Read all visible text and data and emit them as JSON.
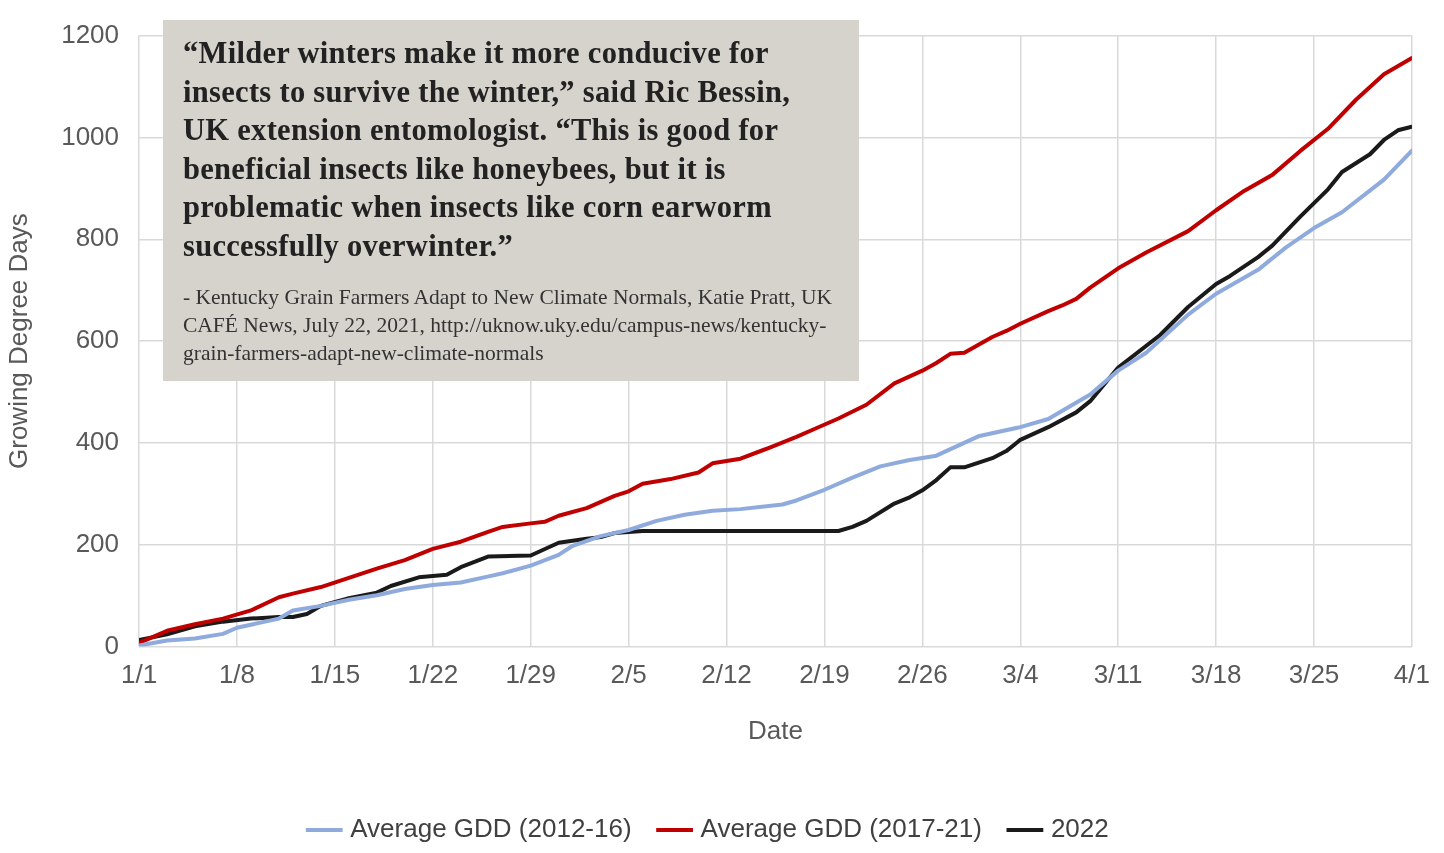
{
  "chart_data": {
    "type": "line",
    "xlabel": "Date",
    "ylabel": "Growing Degree Days",
    "annotations": [
      "“Milder winters make it more conducive for insects to survive the winter,” said Ric Bessin, UK extension entomologist. “This is good for beneficial insects like honeybees, but it is problematic when insects like corn earworm successfully overwinter.”",
      "- Kentucky Grain Farmers Adapt to New Climate Normals, Katie Pratt, UK CAFÉ News, July 22, 2021, http://uknow.uky.edu/campus-news/kentucky-grain-farmers-adapt-new-climate-normals"
    ],
    "xlim": [
      "--01-01",
      "--04-01"
    ],
    "xticks": [
      {
        "value": "--01-01",
        "label": "1/1"
      },
      {
        "value": "--01-08",
        "label": "1/8"
      },
      {
        "value": "--01-15",
        "label": "1/15"
      },
      {
        "value": "--01-22",
        "label": "1/22"
      },
      {
        "value": "--01-29",
        "label": "1/29"
      },
      {
        "value": "--02-05",
        "label": "2/5"
      },
      {
        "value": "--02-12",
        "label": "2/12"
      },
      {
        "value": "--02-19",
        "label": "2/19"
      },
      {
        "value": "--02-26",
        "label": "2/26"
      },
      {
        "value": "--03-04",
        "label": "3/4"
      },
      {
        "value": "--03-11",
        "label": "3/11"
      },
      {
        "value": "--03-18",
        "label": "3/18"
      },
      {
        "value": "--03-25",
        "label": "3/25"
      },
      {
        "value": "--04-01",
        "label": "4/1"
      }
    ],
    "ylim": [
      0,
      1200
    ],
    "yticks": [
      0,
      200,
      400,
      600,
      800,
      1000,
      1200
    ],
    "grid": true,
    "legend": "bottom",
    "marker": "none",
    "line_style": "solid",
    "series": [
      {
        "name": "Average GDD (2012-16)",
        "color": "#8faadc",
        "x": [
          "--01-01",
          "--01-03",
          "--01-05",
          "--01-07",
          "--01-08",
          "--01-11",
          "--01-12",
          "--01-14",
          "--01-16",
          "--01-18",
          "--01-20",
          "--01-22",
          "--01-24",
          "--01-26",
          "--01-27",
          "--01-29",
          "--01-31",
          "--02-01",
          "--02-03",
          "--02-05",
          "--02-07",
          "--02-09",
          "--02-11",
          "--02-13",
          "--02-16",
          "--02-17",
          "--02-19",
          "--02-21",
          "--02-23",
          "--02-25",
          "--02-27",
          "--03-01",
          "--03-04",
          "--03-06",
          "--03-09",
          "--03-11",
          "--03-13",
          "--03-16",
          "--03-18",
          "--03-21",
          "--03-23",
          "--03-25",
          "--03-27",
          "--03-30",
          "--04-01"
        ],
        "values": [
          2,
          12,
          16,
          25,
          37,
          55,
          71,
          80,
          92,
          101,
          113,
          121,
          126,
          138,
          144,
          159,
          180,
          198,
          217,
          229,
          247,
          259,
          267,
          270,
          279,
          287,
          308,
          332,
          354,
          366,
          375,
          413,
          431,
          447,
          495,
          542,
          577,
          652,
          693,
          740,
          784,
          822,
          853,
          917,
          974
        ]
      },
      {
        "name": "Average GDD (2017-21)",
        "color": "#c00000",
        "x": [
          "--01-01",
          "--01-03",
          "--01-05",
          "--01-07",
          "--01-09",
          "--01-11",
          "--01-12",
          "--01-14",
          "--01-16",
          "--01-18",
          "--01-20",
          "--01-22",
          "--01-24",
          "--01-26",
          "--01-27",
          "--01-29",
          "--01-30",
          "--01-31",
          "--02-02",
          "--02-04",
          "--02-05",
          "--02-06",
          "--02-08",
          "--02-10",
          "--02-11",
          "--02-13",
          "--02-15",
          "--02-17",
          "--02-18",
          "--02-20",
          "--02-22",
          "--02-24",
          "--02-26",
          "--02-27",
          "--02-28",
          "--02-29",
          "--03-02",
          "--03-03",
          "--03-04",
          "--03-06",
          "--03-07",
          "--03-08",
          "--03-09",
          "--03-11",
          "--03-13",
          "--03-16",
          "--03-18",
          "--03-20",
          "--03-22",
          "--03-24",
          "--03-26",
          "--03-28",
          "--03-30",
          "--04-01"
        ],
        "values": [
          7,
          31,
          44,
          55,
          71,
          97,
          104,
          117,
          135,
          153,
          170,
          192,
          206,
          226,
          235,
          242,
          245,
          257,
          272,
          296,
          305,
          320,
          329,
          342,
          360,
          369,
          390,
          412,
          424,
          448,
          475,
          517,
          542,
          557,
          575,
          577,
          608,
          620,
          634,
          659,
          670,
          683,
          705,
          743,
          774,
          816,
          857,
          895,
          926,
          973,
          1017,
          1074,
          1124,
          1156
        ]
      },
      {
        "name": "2022",
        "color": "#1a1a1a",
        "x": [
          "--01-01",
          "--01-03",
          "--01-05",
          "--01-07",
          "--01-09",
          "--01-11",
          "--01-12",
          "--01-13",
          "--01-14",
          "--01-16",
          "--01-18",
          "--01-19",
          "--01-21",
          "--01-23",
          "--01-24",
          "--01-26",
          "--01-29",
          "--01-31",
          "--02-02",
          "--02-03",
          "--02-04",
          "--02-06",
          "--02-20",
          "--02-21",
          "--02-22",
          "--02-24",
          "--02-25",
          "--02-26",
          "--02-27",
          "--02-28",
          "--02-29",
          "--03-02",
          "--03-03",
          "--03-04",
          "--03-06",
          "--03-08",
          "--03-09",
          "--03-11",
          "--03-14",
          "--03-16",
          "--03-18",
          "--03-19",
          "--03-21",
          "--03-22",
          "--03-24",
          "--03-26",
          "--03-27",
          "--03-29",
          "--03-30",
          "--03-31",
          "--04-01"
        ],
        "values": [
          13,
          24,
          40,
          49,
          55,
          58,
          58,
          64,
          80,
          95,
          106,
          119,
          136,
          141,
          156,
          177,
          179,
          204,
          212,
          215,
          223,
          227,
          227,
          235,
          247,
          281,
          292,
          307,
          327,
          352,
          352,
          370,
          384,
          406,
          431,
          460,
          482,
          548,
          612,
          667,
          712,
          728,
          765,
          787,
          844,
          898,
          932,
          967,
          995,
          1014,
          1021
        ]
      }
    ]
  }
}
